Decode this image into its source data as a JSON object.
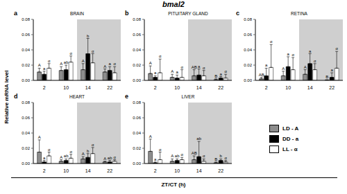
{
  "title": "bmal2",
  "y_label": "Relative mRNA level",
  "x_label": "ZT/CT (h)",
  "chart_data": [
    {
      "type": "bar",
      "panel": "a",
      "title": "BRAIN",
      "categories": [
        "2",
        "10",
        "14",
        "22"
      ],
      "ylim": [
        0,
        0.08
      ],
      "yticks": [
        {
          "value": 0,
          "label": "0.00"
        },
        {
          "value": 0.02,
          "label": "0.02"
        },
        {
          "value": 0.04,
          "label": "0.04"
        },
        {
          "value": 0.06,
          "label": "0.06"
        },
        {
          "value": 0.08,
          "label": "0.08"
        }
      ],
      "shaded": [
        "14",
        "22"
      ],
      "series": [
        {
          "name": "LD - A",
          "color": "#8c8c8c",
          "values": [
            0.011,
            0.013,
            0.014,
            0.011
          ],
          "errors": [
            0.005,
            0.005,
            0.008,
            0.004
          ],
          "annotations": [
            "A",
            "A",
            "A",
            "A"
          ]
        },
        {
          "name": "DD - a",
          "color": "#000000",
          "values": [
            0.008,
            0.014,
            0.035,
            0.013
          ],
          "errors": [
            0.004,
            0.006,
            0.02,
            0.005
          ],
          "annotations": [
            "a",
            "ab",
            "b",
            "a"
          ]
        },
        {
          "name": "LL - α",
          "color": "#ffffff",
          "values": [
            0.016,
            0.024,
            0.023,
            0.01
          ],
          "errors": [
            0.006,
            0.008,
            0.012,
            0.008
          ],
          "annotations": [
            "α",
            "α",
            "α",
            "α"
          ]
        }
      ]
    },
    {
      "type": "bar",
      "panel": "b",
      "title": "PITUITARY GLAND",
      "categories": [
        "2",
        "10",
        "14",
        "22"
      ],
      "ylim": [
        0,
        0.08
      ],
      "yticks": [
        {
          "value": 0,
          "label": "0.00"
        },
        {
          "value": 0.02,
          "label": "0.02"
        },
        {
          "value": 0.04,
          "label": "0.04"
        },
        {
          "value": 0.06,
          "label": "0.06"
        },
        {
          "value": 0.08,
          "label": "0.08"
        }
      ],
      "shaded": [
        "14",
        "22"
      ],
      "series": [
        {
          "name": "LD - A",
          "color": "#8c8c8c",
          "values": [
            0.009,
            0.004,
            0.006,
            0.001
          ],
          "errors": [
            0.01,
            0.004,
            0.008,
            0.001
          ],
          "annotations": [
            "A",
            "A",
            "AB",
            "B"
          ]
        },
        {
          "name": "DD - a",
          "color": "#000000",
          "values": [
            0.004,
            0.003,
            0.007,
            0.003
          ],
          "errors": [
            0.002,
            0.004,
            0.008,
            0.002
          ],
          "annotations": [
            "a",
            "a",
            "a",
            "a"
          ]
        },
        {
          "name": "LL - α",
          "color": "#ffffff",
          "values": [
            0.01,
            0.004,
            0.006,
            0.003
          ],
          "errors": [
            0.018,
            0.01,
            0.007,
            0.005
          ],
          "annotations": [
            "α",
            "α",
            "α",
            "α"
          ]
        }
      ]
    },
    {
      "type": "bar",
      "panel": "c",
      "title": "RETINA",
      "categories": [
        "2",
        "10",
        "14",
        "22"
      ],
      "ylim": [
        0,
        0.08
      ],
      "yticks": [
        {
          "value": 0,
          "label": "0.00"
        },
        {
          "value": 0.02,
          "label": "0.02"
        },
        {
          "value": 0.04,
          "label": "0.04"
        },
        {
          "value": 0.06,
          "label": "0.06"
        },
        {
          "value": 0.08,
          "label": "0.08"
        }
      ],
      "shaded": [
        "14",
        "22"
      ],
      "series": [
        {
          "name": "LD - A",
          "color": "#8c8c8c",
          "values": [
            0.002,
            0.006,
            0.008,
            0.0005
          ],
          "errors": [
            0.002,
            0.006,
            0.006,
            0.0003
          ],
          "annotations": [
            "AB",
            "A",
            "A",
            "B"
          ]
        },
        {
          "name": "DD - a",
          "color": "#000000",
          "values": [
            0.006,
            0.018,
            0.022,
            0.004
          ],
          "errors": [
            0.01,
            0.013,
            0.013,
            0.006
          ],
          "annotations": [
            "a",
            "a",
            "a",
            "a"
          ]
        },
        {
          "name": "LL - α",
          "color": "#ffffff",
          "values": [
            0.017,
            0.014,
            0.014,
            0.016
          ],
          "errors": [
            0.03,
            0.016,
            0.008,
            0.022
          ],
          "annotations": [
            "α",
            "α",
            "α",
            "α"
          ]
        }
      ]
    },
    {
      "type": "bar",
      "panel": "d",
      "title": "HEART",
      "categories": [
        "2",
        "10",
        "14",
        "22"
      ],
      "ylim": [
        0,
        0.08
      ],
      "yticks": [
        {
          "value": 0,
          "label": "0.00"
        },
        {
          "value": 0.02,
          "label": "0.02"
        },
        {
          "value": 0.04,
          "label": "0.04"
        },
        {
          "value": 0.06,
          "label": "0.06"
        },
        {
          "value": 0.08,
          "label": "0.08"
        }
      ],
      "shaded": [
        "14",
        "22"
      ],
      "series": [
        {
          "name": "LD - A",
          "color": "#8c8c8c",
          "values": [
            0.015,
            0.003,
            0.006,
            0.002
          ],
          "errors": [
            0.016,
            0.002,
            0.003,
            0.001
          ],
          "annotations": [
            "A",
            "A",
            "A",
            "A"
          ]
        },
        {
          "name": "DD - a",
          "color": "#000000",
          "values": [
            0.002,
            0.004,
            0.008,
            0.002
          ],
          "errors": [
            0.002,
            0.002,
            0.005,
            0.002
          ],
          "annotations": [
            "a",
            "ab",
            "b",
            "ab"
          ]
        },
        {
          "name": "LL - α",
          "color": "#ffffff",
          "values": [
            0.01,
            0.007,
            0.013,
            0.003
          ],
          "errors": [
            0.005,
            0.005,
            0.008,
            0.002
          ],
          "annotations": [
            "α",
            "α",
            "α",
            "α"
          ]
        }
      ]
    },
    {
      "type": "bar",
      "panel": "e",
      "title": "LIVER",
      "categories": [
        "2",
        "10",
        "14",
        "22"
      ],
      "ylim": [
        0,
        0.08
      ],
      "yticks": [
        {
          "value": 0,
          "label": "0.00"
        },
        {
          "value": 0.02,
          "label": "0.02"
        },
        {
          "value": 0.04,
          "label": "0.04"
        },
        {
          "value": 0.06,
          "label": "0.06"
        },
        {
          "value": 0.08,
          "label": "0.08"
        }
      ],
      "shaded": [
        "14",
        "22"
      ],
      "series": [
        {
          "name": "LD - A",
          "color": "#8c8c8c",
          "values": [
            0.016,
            0.003,
            0.005,
            0.001
          ],
          "errors": [
            0.016,
            0.003,
            0.005,
            0.001
          ],
          "annotations": [
            "A",
            "A",
            "AB",
            "B"
          ]
        },
        {
          "name": "DD - a",
          "color": "#000000",
          "values": [
            0.001,
            0.004,
            0.009,
            0.004
          ],
          "errors": [
            0.001,
            0.002,
            0.02,
            0.002
          ],
          "annotations": [
            "a",
            "ab",
            "ab",
            "b"
          ]
        },
        {
          "name": "LL - α",
          "color": "#ffffff",
          "values": [
            0.005,
            0.005,
            0.003,
            0.002
          ],
          "errors": [
            0.01,
            0.003,
            0.003,
            0.002
          ],
          "annotations": [
            "α",
            "α",
            "α",
            "α"
          ]
        }
      ]
    }
  ]
}
